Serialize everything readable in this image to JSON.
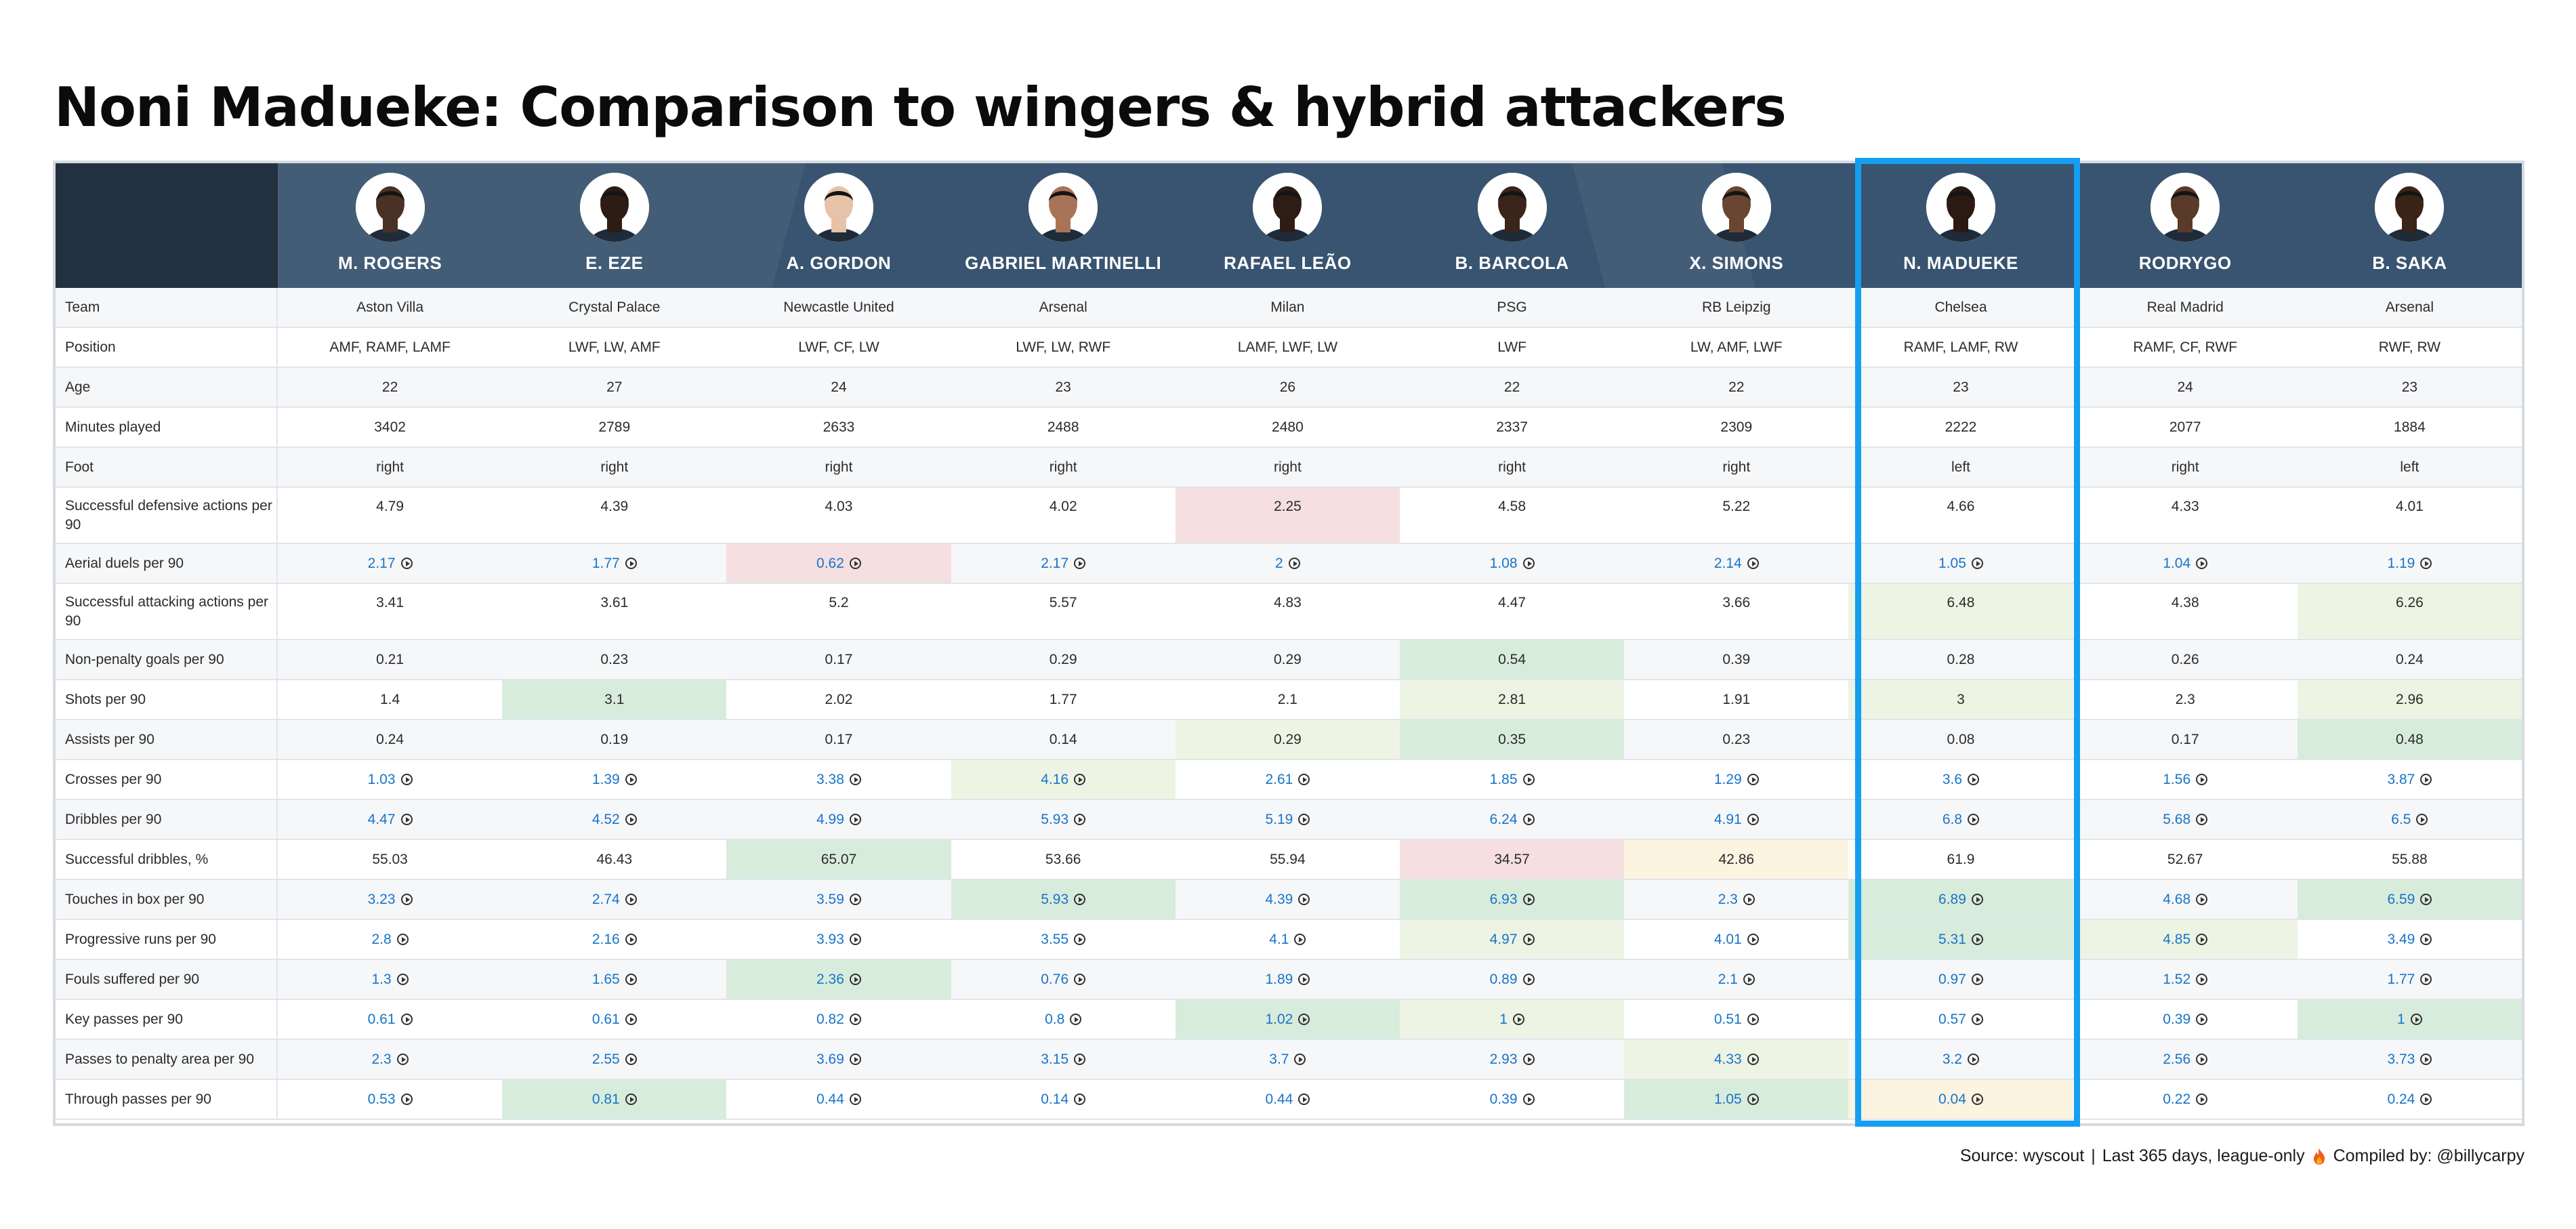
{
  "title": "Noni Madueke: Comparison to wingers & hybrid attackers",
  "highlight_player_index": 7,
  "colors": {
    "header": "#395470",
    "header_corner": "#22303f",
    "highlight_border": "#159ff0",
    "link": "#1774c9",
    "good_light": "#edf4e4",
    "good": "#d8ecdc",
    "bad": "#f5dfe1",
    "warn": "#fcf3e1"
  },
  "players": [
    {
      "name": "M. ROGERS",
      "team": "Aston Villa",
      "position": "AMF, RAMF, LAMF",
      "age": "22",
      "minutes": "3402",
      "foot": "right",
      "skin": "#4a3125"
    },
    {
      "name": "E. EZE",
      "team": "Crystal Palace",
      "position": "LWF, LW, AMF",
      "age": "27",
      "minutes": "2789",
      "foot": "right",
      "skin": "#2c1c14"
    },
    {
      "name": "A. GORDON",
      "team": "Newcastle United",
      "position": "LWF, CF, LW",
      "age": "24",
      "minutes": "2633",
      "foot": "right",
      "skin": "#e6c2a8"
    },
    {
      "name": "GABRIEL MARTINELLI",
      "team": "Arsenal",
      "position": "LWF, LW, RWF",
      "age": "23",
      "minutes": "2488",
      "foot": "right",
      "skin": "#a87458"
    },
    {
      "name": "RAFAEL LEÃO",
      "team": "Milan",
      "position": "LAMF, LWF, LW",
      "age": "26",
      "minutes": "2480",
      "foot": "right",
      "skin": "#2e1d15"
    },
    {
      "name": "B. BARCOLA",
      "team": "PSG",
      "position": "LWF",
      "age": "22",
      "minutes": "2337",
      "foot": "right",
      "skin": "#3a251b"
    },
    {
      "name": "X. SIMONS",
      "team": "RB Leipzig",
      "position": "LW, AMF, LWF",
      "age": "22",
      "minutes": "2309",
      "foot": "right",
      "skin": "#6a4632"
    },
    {
      "name": "N. MADUEKE",
      "team": "Chelsea",
      "position": "RAMF, LAMF, RW",
      "age": "23",
      "minutes": "2222",
      "foot": "left",
      "skin": "#2a1a12"
    },
    {
      "name": "RODRYGO",
      "team": "Real Madrid",
      "position": "RAMF, CF, RWF",
      "age": "24",
      "minutes": "2077",
      "foot": "right",
      "skin": "#5a3a28"
    },
    {
      "name": "B. SAKA",
      "team": "Arsenal",
      "position": "RWF, RW",
      "age": "23",
      "minutes": "1884",
      "foot": "left",
      "skin": "#3a2418"
    }
  ],
  "info_rows": [
    {
      "label": "Team",
      "key": "team"
    },
    {
      "label": "Position",
      "key": "position"
    },
    {
      "label": "Age",
      "key": "age"
    },
    {
      "label": "Minutes played",
      "key": "minutes"
    },
    {
      "label": "Foot",
      "key": "foot"
    }
  ],
  "stat_rows": [
    {
      "label": "Successful defensive actions per 90",
      "tall": true,
      "link": false,
      "values": [
        "4.79",
        "4.39",
        "4.03",
        "4.02",
        "2.25",
        "4.58",
        "5.22",
        "4.66",
        "4.33",
        "4.01"
      ],
      "shades": [
        "",
        "",
        "",
        "",
        "r1",
        "",
        "",
        "",
        "",
        ""
      ]
    },
    {
      "label": "Aerial duels per 90",
      "tall": false,
      "link": true,
      "values": [
        "2.17",
        "1.77",
        "0.62",
        "2.17",
        "2",
        "1.08",
        "2.14",
        "1.05",
        "1.04",
        "1.19"
      ],
      "shades": [
        "",
        "",
        "r1",
        "",
        "",
        "",
        "",
        "",
        "",
        ""
      ]
    },
    {
      "label": "Successful attacking actions per 90",
      "tall": true,
      "link": false,
      "values": [
        "3.41",
        "3.61",
        "5.2",
        "5.57",
        "4.83",
        "4.47",
        "3.66",
        "6.48",
        "4.38",
        "6.26"
      ],
      "shades": [
        "",
        "",
        "",
        "",
        "",
        "",
        "",
        "g1",
        "",
        "g1"
      ]
    },
    {
      "label": "Non-penalty goals per 90",
      "tall": false,
      "link": false,
      "values": [
        "0.21",
        "0.23",
        "0.17",
        "0.29",
        "0.29",
        "0.54",
        "0.39",
        "0.28",
        "0.26",
        "0.24"
      ],
      "shades": [
        "",
        "",
        "",
        "",
        "",
        "g2",
        "",
        "",
        "",
        ""
      ]
    },
    {
      "label": "Shots per 90",
      "tall": false,
      "link": false,
      "values": [
        "1.4",
        "3.1",
        "2.02",
        "1.77",
        "2.1",
        "2.81",
        "1.91",
        "3",
        "2.3",
        "2.96"
      ],
      "shades": [
        "",
        "g2",
        "",
        "",
        "",
        "g1",
        "",
        "g1",
        "",
        "g1"
      ]
    },
    {
      "label": "Assists per 90",
      "tall": false,
      "link": false,
      "values": [
        "0.24",
        "0.19",
        "0.17",
        "0.14",
        "0.29",
        "0.35",
        "0.23",
        "0.08",
        "0.17",
        "0.48"
      ],
      "shades": [
        "",
        "",
        "",
        "",
        "g1",
        "g2",
        "",
        "",
        "",
        "g2"
      ]
    },
    {
      "label": "Crosses per 90",
      "tall": false,
      "link": true,
      "values": [
        "1.03",
        "1.39",
        "3.38",
        "4.16",
        "2.61",
        "1.85",
        "1.29",
        "3.6",
        "1.56",
        "3.87"
      ],
      "shades": [
        "",
        "",
        "",
        "g1",
        "",
        "",
        "",
        "",
        "",
        ""
      ]
    },
    {
      "label": "Dribbles per 90",
      "tall": false,
      "link": true,
      "values": [
        "4.47",
        "4.52",
        "4.99",
        "5.93",
        "5.19",
        "6.24",
        "4.91",
        "6.8",
        "5.68",
        "6.5"
      ],
      "shades": [
        "",
        "",
        "",
        "",
        "",
        "",
        "",
        "",
        "",
        ""
      ]
    },
    {
      "label": "Successful dribbles, %",
      "tall": false,
      "link": false,
      "values": [
        "55.03",
        "46.43",
        "65.07",
        "53.66",
        "55.94",
        "34.57",
        "42.86",
        "61.9",
        "52.67",
        "55.88"
      ],
      "shades": [
        "",
        "",
        "g2",
        "",
        "",
        "r1",
        "o1",
        "",
        "",
        ""
      ]
    },
    {
      "label": "Touches in box per 90",
      "tall": false,
      "link": true,
      "values": [
        "3.23",
        "2.74",
        "3.59",
        "5.93",
        "4.39",
        "6.93",
        "2.3",
        "6.89",
        "4.68",
        "6.59"
      ],
      "shades": [
        "",
        "",
        "",
        "g2",
        "",
        "g2",
        "",
        "g2",
        "",
        "g2"
      ]
    },
    {
      "label": "Progressive runs per 90",
      "tall": false,
      "link": true,
      "values": [
        "2.8",
        "2.16",
        "3.93",
        "3.55",
        "4.1",
        "4.97",
        "4.01",
        "5.31",
        "4.85",
        "3.49"
      ],
      "shades": [
        "",
        "",
        "",
        "",
        "",
        "g1",
        "",
        "g2",
        "g1",
        ""
      ]
    },
    {
      "label": "Fouls suffered per 90",
      "tall": false,
      "link": true,
      "values": [
        "1.3",
        "1.65",
        "2.36",
        "0.76",
        "1.89",
        "0.89",
        "2.1",
        "0.97",
        "1.52",
        "1.77"
      ],
      "shades": [
        "",
        "",
        "g2",
        "",
        "",
        "",
        "",
        "",
        "",
        ""
      ]
    },
    {
      "label": "Key passes per 90",
      "tall": false,
      "link": true,
      "values": [
        "0.61",
        "0.61",
        "0.82",
        "0.8",
        "1.02",
        "1",
        "0.51",
        "0.57",
        "0.39",
        "1"
      ],
      "shades": [
        "",
        "",
        "",
        "",
        "g2",
        "g1",
        "",
        "",
        "",
        "g2"
      ]
    },
    {
      "label": "Passes to penalty area per 90",
      "tall": false,
      "link": true,
      "values": [
        "2.3",
        "2.55",
        "3.69",
        "3.15",
        "3.7",
        "2.93",
        "4.33",
        "3.2",
        "2.56",
        "3.73"
      ],
      "shades": [
        "",
        "",
        "",
        "",
        "",
        "",
        "g1",
        "",
        "",
        ""
      ]
    },
    {
      "label": "Through passes per 90",
      "tall": false,
      "link": true,
      "values": [
        "0.53",
        "0.81",
        "0.44",
        "0.14",
        "0.44",
        "0.39",
        "1.05",
        "0.04",
        "0.22",
        "0.24"
      ],
      "shades": [
        "",
        "g2",
        "",
        "",
        "",
        "",
        "g2",
        "o1",
        "",
        ""
      ]
    }
  ],
  "footer": {
    "source": "Source: wyscout",
    "separator": "|",
    "period": "Last 365 days, league-only",
    "credit": "Compiled by: @billycarpy"
  }
}
